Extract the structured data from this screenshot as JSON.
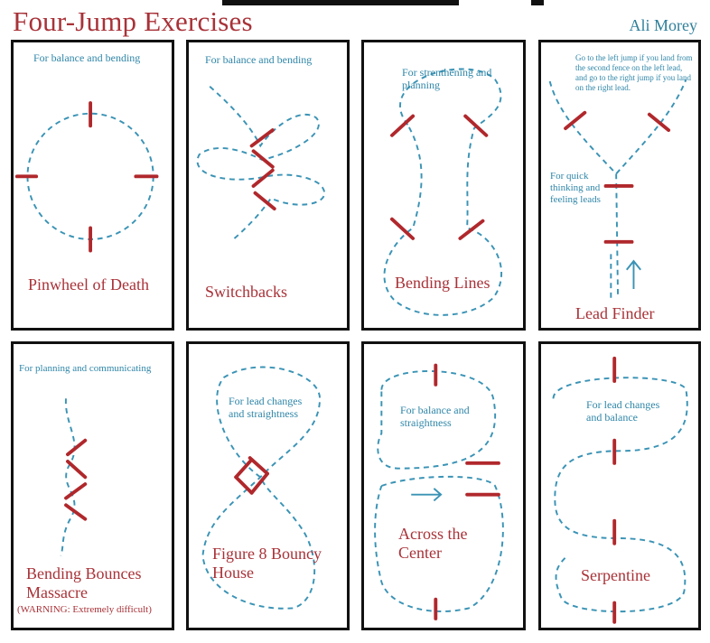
{
  "header": {
    "title": "Four-Jump Exercises",
    "author": "Ali Morey"
  },
  "colors": {
    "title": "#a83238",
    "note": "#2f86a8",
    "path": "#3a93b5",
    "jump": "#b0282c"
  },
  "panels": [
    {
      "name": "Pinwheel of Death",
      "note": "For balance and bending"
    },
    {
      "name": "Switchbacks",
      "note": "For balance and bending"
    },
    {
      "name": "Bending Lines",
      "note": "For strenthening and planning"
    },
    {
      "name": "Lead Finder",
      "note": "Go to the left jump if you land from the second fence on the left lead, and go to the right jump if you land on the right lead.",
      "note2": "For quick thinking and feeling leads"
    },
    {
      "name": "Bending Bounces Massacre",
      "note": "For planning and communicating",
      "warning": "(WARNING: Extremely difficult)"
    },
    {
      "name": "Figure 8 Bouncy House",
      "note": "For lead changes and straightness"
    },
    {
      "name": "Across the Center",
      "note": "For balance and straightness"
    },
    {
      "name": "Serpentine",
      "note": "For lead changes and balance"
    }
  ]
}
